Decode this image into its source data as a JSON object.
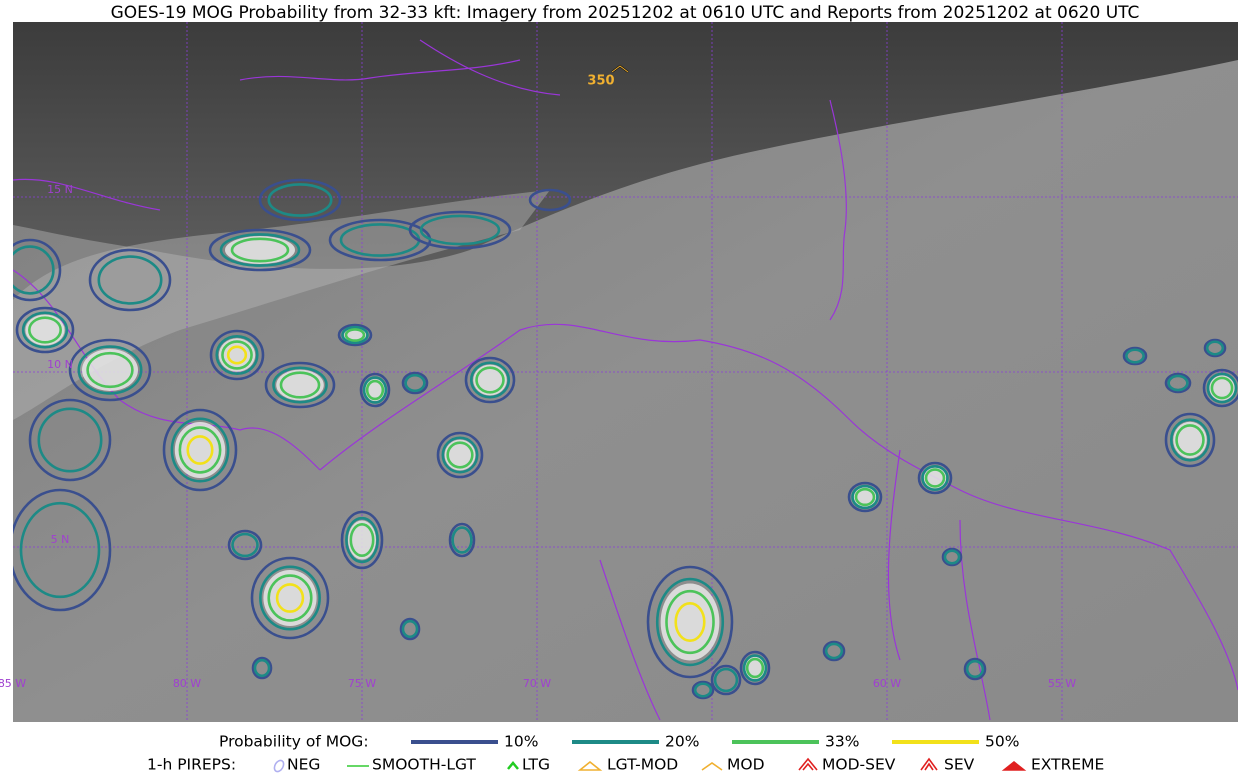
{
  "title": "GOES-19 MOG Probability from 32-33 kft: Imagery from 20251202 at 0610 UTC and Reports from 20251202 at 0620 UTC",
  "map": {
    "lat_labels": [
      "15 N",
      "10 N",
      "5 N"
    ],
    "lon_labels": [
      "85 W",
      "80 W",
      "75 W",
      "70 W",
      "60 W",
      "55 W"
    ],
    "report_label": "350"
  },
  "legend": {
    "probability": {
      "title": "Probability of MOG:",
      "items": [
        {
          "label": "10%",
          "color": "#3a4f8e"
        },
        {
          "label": "20%",
          "color": "#1d8a86"
        },
        {
          "label": "33%",
          "color": "#4cc35a"
        },
        {
          "label": "50%",
          "color": "#f2e11a"
        }
      ]
    },
    "pireps": {
      "title": "1-h PIREPS:",
      "items": [
        "NEG",
        "SMOOTH-LGT",
        "LTG",
        "LGT-MOD",
        "MOD",
        "MOD-SEV",
        "SEV",
        "EXTREME"
      ]
    }
  }
}
